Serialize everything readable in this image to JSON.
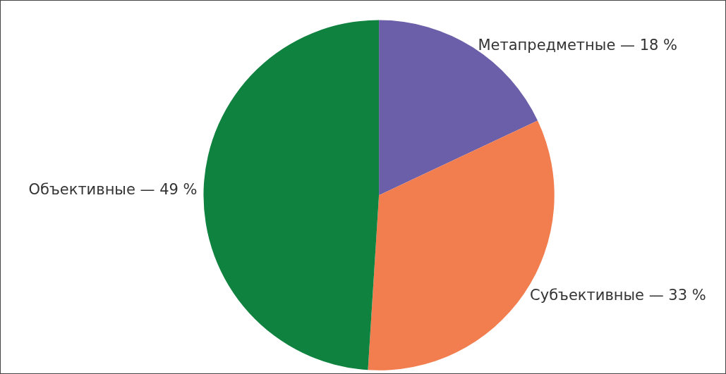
{
  "chart_data": {
    "type": "pie",
    "categories": [
      "Метапредметные — 18 %",
      "Субъективные — 33 %",
      "Объективные — 49 %"
    ],
    "values": [
      18,
      33,
      49
    ],
    "colors": [
      "#6a5fa8",
      "#f27e50",
      "#0f823f"
    ],
    "legend": false
  }
}
